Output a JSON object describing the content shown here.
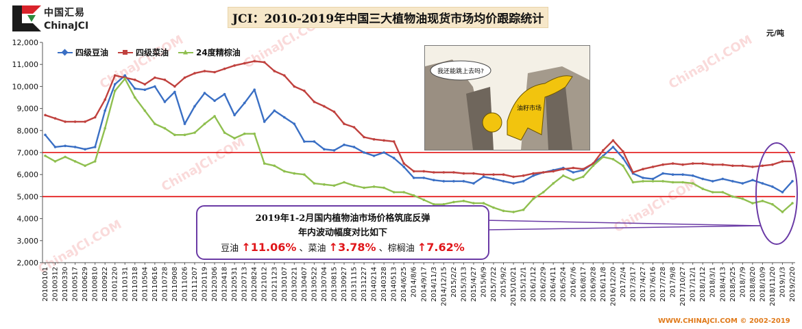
{
  "logo": {
    "cn": "中国汇易",
    "en": "ChinaJCI"
  },
  "title": "JCI：2010-2019年中国三大植物油现货市场均价跟踪统计",
  "unit": "元/吨",
  "footer": "WWW.CHINAJCI.COM © 2002-2019",
  "cartoon": {
    "bubble": "我还能跳上去吗?",
    "bull_label": "油籽市场"
  },
  "annotation": {
    "line1": "2019年1-2月国内植物油市场价格筑底反弹",
    "line2": "年内波动幅度对比如下",
    "soy_label": "豆油",
    "soy_pct": "↑11.06%",
    "sep1": "、菜油",
    "rape_pct": "↑3.78%",
    "sep2": "、棕榈油",
    "palm_pct": "↑7.62%"
  },
  "colors": {
    "soy": "#3a6fc4",
    "rape": "#c0413e",
    "palm": "#8fbf4f",
    "refline": "#e00000",
    "ellipse": "#6a3aa5"
  },
  "chart_data": {
    "type": "line",
    "ylim": [
      2000,
      12000
    ],
    "yticks": [
      "2,000",
      "3,000",
      "4,000",
      "5,000",
      "6,000",
      "7,000",
      "8,000",
      "9,000",
      "10,000",
      "11,000",
      "12,000"
    ],
    "yticks_num": [
      2000,
      3000,
      4000,
      5000,
      6000,
      7000,
      8000,
      9000,
      10000,
      11000,
      12000
    ],
    "reference_lines": [
      7000,
      5000
    ],
    "grid": false,
    "legend_position": "top-left",
    "x_tick_labels": [
      "20100101",
      "20100312",
      "20100330",
      "20100517",
      "20100629",
      "20100810",
      "20100922",
      "20101220",
      "20110131",
      "20110318",
      "20110504",
      "20110616",
      "20110728",
      "20110908",
      "20111026",
      "20111207",
      "20120119",
      "20120306",
      "20120418",
      "20120531",
      "20120713",
      "20120824",
      "20121012",
      "20121123",
      "20130107",
      "20130221",
      "20130407",
      "20130522",
      "20130704",
      "20130815",
      "20130927",
      "20131115",
      "20131227",
      "20140214",
      "20140328",
      "20140513",
      "2014/6/25",
      "2014/8/6",
      "2014/9/17",
      "2014/11/3",
      "2014/12/15",
      "2015/2/2",
      "2015/3/13",
      "2015/4/27",
      "2015/6/9",
      "2015/7/22",
      "2015/9/2",
      "2015/10/21",
      "2015/12/1",
      "2016/1/12",
      "2016/2/29",
      "2016/4/11",
      "2016/5/24",
      "2016/7/6",
      "2016/8/17",
      "2016/9/28",
      "2016/11/8",
      "2016/12/20",
      "2017/2/4",
      "2017/3/17",
      "2017/4/27",
      "2017/6/16",
      "2017/7/28",
      "2017/9/8",
      "2017/10/27",
      "2017/12/1",
      "2018/1/12",
      "2018/3/1",
      "2018/4/13",
      "2018/5/25",
      "2018/7/9",
      "2018/8/20",
      "2018/10/9",
      "2018/11/20",
      "2019/1/3",
      "2019/2/20"
    ],
    "series": [
      {
        "name": "四级豆油",
        "values": [
          7800,
          7250,
          7300,
          7250,
          7150,
          7250,
          8900,
          10100,
          10500,
          9900,
          9850,
          10000,
          9300,
          9750,
          8300,
          9100,
          9700,
          9350,
          9650,
          8700,
          9250,
          9850,
          8400,
          8900,
          8600,
          8300,
          7500,
          7500,
          7150,
          7100,
          7350,
          7250,
          7000,
          6850,
          7000,
          6750,
          6350,
          5850,
          5850,
          5750,
          5700,
          5700,
          5700,
          5600,
          5900,
          5800,
          5700,
          5600,
          5700,
          5950,
          6100,
          6200,
          6300,
          6100,
          6200,
          6500,
          6850,
          7250,
          6750,
          6050,
          5850,
          5800,
          6050,
          6000,
          6000,
          5950,
          5800,
          5700,
          5800,
          5700,
          5600,
          5750,
          5600,
          5450,
          5200,
          5700
        ]
      },
      {
        "name": "四级菜油",
        "values": [
          8700,
          8550,
          8400,
          8400,
          8400,
          8600,
          9400,
          10500,
          10400,
          10300,
          10100,
          10400,
          10300,
          10000,
          10400,
          10600,
          10700,
          10650,
          10800,
          10950,
          11050,
          11150,
          11100,
          10700,
          10500,
          10000,
          9800,
          9300,
          9100,
          8850,
          8300,
          8150,
          7700,
          7600,
          7550,
          7500,
          6500,
          6150,
          6150,
          6100,
          6100,
          6100,
          6050,
          6050,
          6000,
          6000,
          6000,
          5900,
          5950,
          6050,
          6100,
          6150,
          6250,
          6300,
          6250,
          6500,
          7100,
          7550,
          7050,
          6100,
          6250,
          6350,
          6450,
          6500,
          6450,
          6500,
          6500,
          6450,
          6450,
          6400,
          6400,
          6350,
          6400,
          6450,
          6600,
          6600
        ]
      },
      {
        "name": "24度精棕油",
        "values": [
          6850,
          6600,
          6800,
          6600,
          6400,
          6600,
          8100,
          9800,
          10350,
          9500,
          8900,
          8300,
          8100,
          7800,
          7800,
          7900,
          8300,
          8650,
          7900,
          7650,
          7850,
          7850,
          6500,
          6400,
          6150,
          6050,
          6000,
          5600,
          5550,
          5500,
          5650,
          5500,
          5400,
          5450,
          5400,
          5200,
          5200,
          5050,
          4850,
          4650,
          4650,
          4750,
          4800,
          4700,
          4700,
          4500,
          4350,
          4300,
          4400,
          4900,
          5200,
          5600,
          5950,
          5750,
          5900,
          6400,
          6800,
          6700,
          6400,
          5650,
          5700,
          5700,
          5700,
          5650,
          5650,
          5600,
          5350,
          5200,
          5200,
          5000,
          4900,
          4700,
          4800,
          4650,
          4300,
          4700
        ]
      }
    ]
  }
}
